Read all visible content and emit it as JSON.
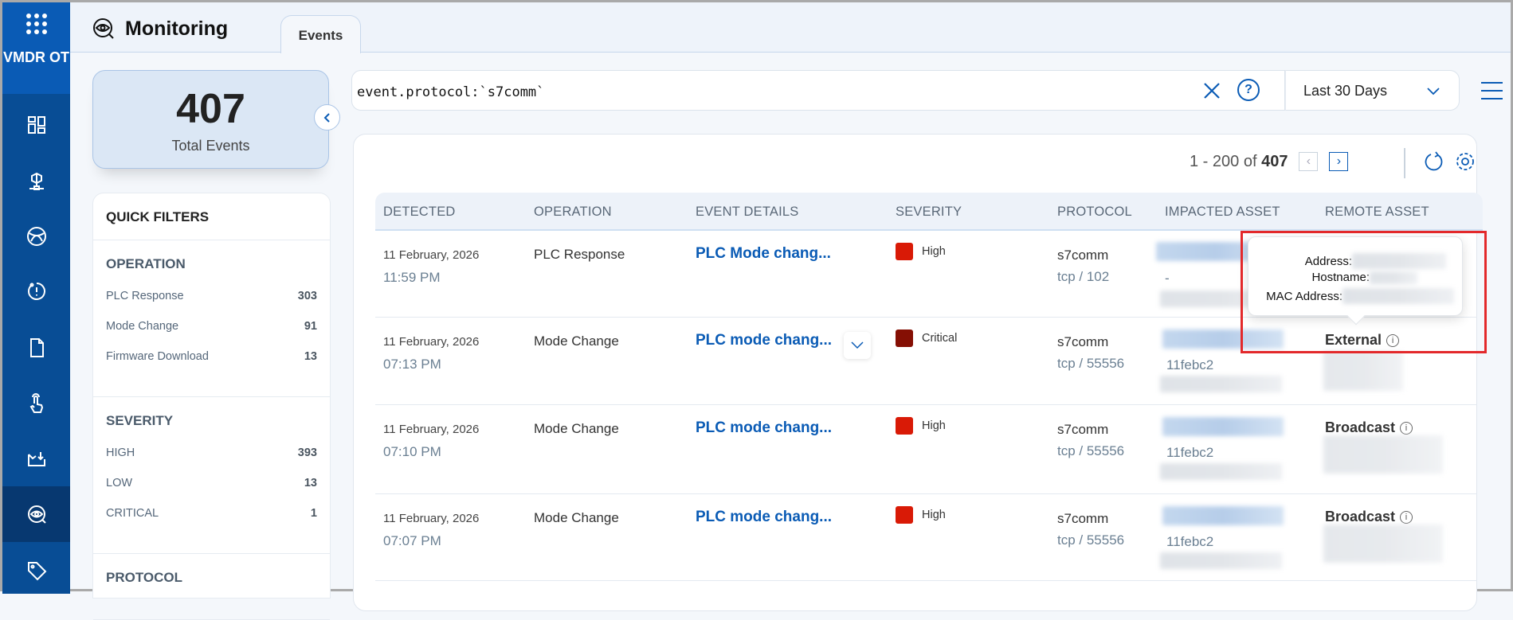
{
  "app": {
    "brand": "VMDR OT",
    "title": "Monitoring"
  },
  "sidebar": {
    "items": [
      {
        "icon": "dashboard-icon"
      },
      {
        "icon": "network-asset-icon"
      },
      {
        "icon": "globe-icon"
      },
      {
        "icon": "alert-clock-icon"
      },
      {
        "icon": "document-icon"
      },
      {
        "icon": "touch-icon"
      },
      {
        "icon": "inbox-download-icon"
      },
      {
        "icon": "monitoring-eye-icon",
        "active": true
      },
      {
        "icon": "tag-icon"
      }
    ]
  },
  "tabs": [
    {
      "label": "Events",
      "active": true
    }
  ],
  "summary": {
    "count": "407",
    "label": "Total Events"
  },
  "quick_filters": {
    "title": "QUICK FILTERS",
    "sections": [
      {
        "title": "OPERATION",
        "items": [
          {
            "label": "PLC Response",
            "count": "303"
          },
          {
            "label": "Mode Change",
            "count": "91"
          },
          {
            "label": "Firmware Download",
            "count": "13"
          }
        ]
      },
      {
        "title": "SEVERITY",
        "items": [
          {
            "label": "HIGH",
            "count": "393"
          },
          {
            "label": "LOW",
            "count": "13"
          },
          {
            "label": "CRITICAL",
            "count": "1"
          }
        ]
      },
      {
        "title": "PROTOCOL",
        "items": []
      }
    ]
  },
  "search": {
    "query": "event.protocol:`s7comm`",
    "help": "?"
  },
  "date_range": {
    "selected": "Last 30 Days"
  },
  "pagination": {
    "range": "1 - 200 of",
    "total": "407"
  },
  "table": {
    "columns": [
      "DETECTED",
      "OPERATION",
      "EVENT DETAILS",
      "SEVERITY",
      "PROTOCOL",
      "IMPACTED ASSET",
      "REMOTE ASSET"
    ],
    "rows": [
      {
        "date": "11 February, 2026",
        "time": "11:59 PM",
        "operation": "PLC Response",
        "details": "PLC Mode chang...",
        "severity": "High",
        "severity_color": "#d91a06",
        "protocol": "s7comm",
        "port": "tcp / 102",
        "asset": "-",
        "remote": ""
      },
      {
        "date": "11 February, 2026",
        "time": "07:13 PM",
        "operation": "Mode Change",
        "details": "PLC mode chang...",
        "severity": "Critical",
        "severity_color": "#850f04",
        "protocol": "s7comm",
        "port": "tcp / 55556",
        "asset": "11febc2",
        "remote": "External"
      },
      {
        "date": "11 February, 2026",
        "time": "07:10 PM",
        "operation": "Mode Change",
        "details": "PLC mode chang...",
        "severity": "High",
        "severity_color": "#d91a06",
        "protocol": "s7comm",
        "port": "tcp / 55556",
        "asset": "11febc2",
        "remote": "Broadcast"
      },
      {
        "date": "11 February, 2026",
        "time": "07:07 PM",
        "operation": "Mode Change",
        "details": "PLC mode chang...",
        "severity": "High",
        "severity_color": "#d91a06",
        "protocol": "s7comm",
        "port": "tcp / 55556",
        "asset": "11febc2",
        "remote": "Broadcast"
      }
    ]
  },
  "tooltip": {
    "address_label": "Address:",
    "hostname_label": "Hostname:",
    "mac_label": "MAC Address:"
  },
  "colors": {
    "accent": "#0a5bb5",
    "sidebar": "#084d95",
    "highlight": "#e3292b"
  }
}
